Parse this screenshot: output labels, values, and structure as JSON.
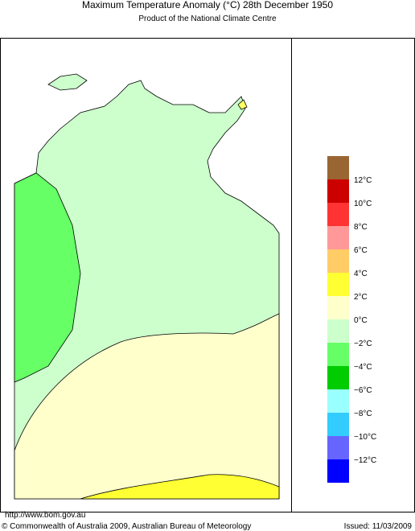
{
  "header": {
    "title": "Maximum Temperature Anomaly (°C)  28th December 1950",
    "subtitle": "Product of the National Climate Centre"
  },
  "legend": {
    "labels": [
      "12°C",
      "10°C",
      "8°C",
      "6°C",
      "4°C",
      "2°C",
      "0°C",
      "−2°C",
      "−4°C",
      "−6°C",
      "−8°C",
      "−10°C",
      "−12°C"
    ],
    "colors": [
      "#996633",
      "#cc0000",
      "#ff3333",
      "#ff9999",
      "#ffcc66",
      "#ffff33",
      "#ffffcc",
      "#ccffcc",
      "#66ff66",
      "#00cc00",
      "#99ffff",
      "#33ccff",
      "#6666ff",
      "#0000ff"
    ]
  },
  "footer": {
    "url": "http://www.bom.gov.au",
    "copyright": "© Commonwealth of Australia 2009, Australian Bureau of Meteorology",
    "issued": "Issued: 11/03/2009"
  }
}
